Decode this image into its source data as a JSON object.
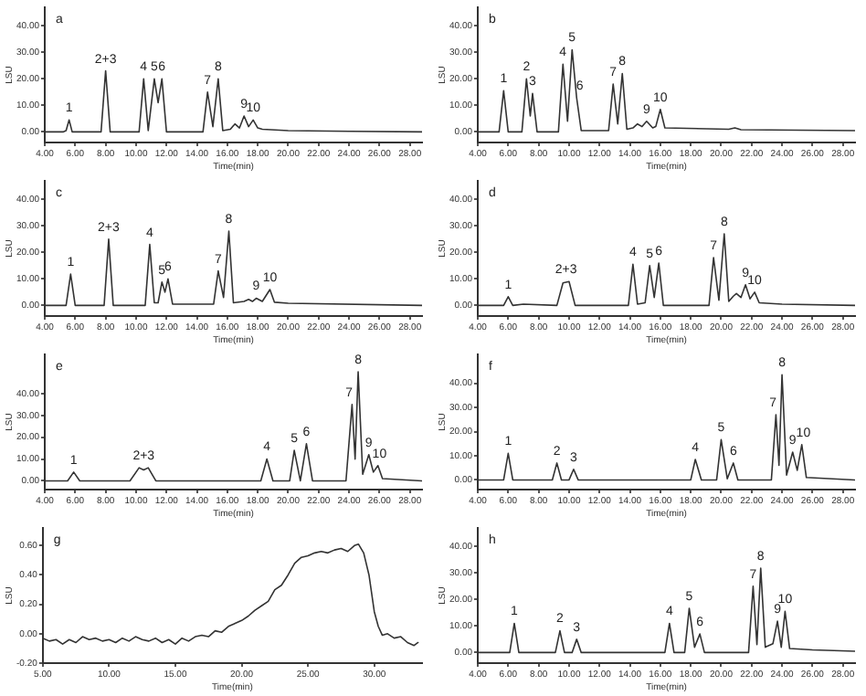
{
  "chart_data": [
    {
      "type": "line",
      "title": "a",
      "xlabel": "Time(min)",
      "ylabel": "LSU",
      "color": "#333333",
      "marker": "none",
      "x": [
        4,
        5.2,
        5.4,
        5.6,
        5.8,
        7.7,
        8.0,
        8.3,
        10.2,
        10.5,
        10.8,
        11.2,
        11.45,
        11.7,
        12.0,
        14.4,
        14.7,
        15.05,
        15.4,
        15.7,
        16.2,
        16.5,
        16.8,
        17.1,
        17.4,
        17.7,
        18.0,
        18.3,
        20,
        24,
        28.8
      ],
      "values": [
        0,
        0,
        0.5,
        4.5,
        0,
        0,
        23,
        0,
        0,
        20,
        0.5,
        20,
        11,
        20,
        0,
        0,
        15,
        2,
        20,
        0.5,
        1,
        3,
        1.5,
        6,
        2,
        4.5,
        1.5,
        1,
        0.5,
        0.2,
        0
      ],
      "xlim": [
        4,
        28.8
      ],
      "xticks": [
        {
          "value": 4,
          "label": "4.00"
        },
        {
          "value": 6,
          "label": "6.00"
        },
        {
          "value": 8,
          "label": "8.00"
        },
        {
          "value": 10,
          "label": "10.00"
        },
        {
          "value": 12,
          "label": "12.00"
        },
        {
          "value": 14,
          "label": "14.00"
        },
        {
          "value": 16,
          "label": "16.00"
        },
        {
          "value": 18,
          "label": "18.00"
        },
        {
          "value": 20,
          "label": "20.00"
        },
        {
          "value": 22,
          "label": "22.00"
        },
        {
          "value": 24,
          "label": "24.00"
        },
        {
          "value": 26,
          "label": "26.00"
        },
        {
          "value": 28,
          "label": "28.00"
        }
      ],
      "ylim": [
        -4,
        47
      ],
      "yticks": [
        {
          "value": 0,
          "label": "0.00"
        },
        {
          "value": 10,
          "label": "10.00"
        },
        {
          "value": 20,
          "label": "20.00"
        },
        {
          "value": 30,
          "label": "30.00"
        },
        {
          "value": 40,
          "label": "40.00"
        }
      ],
      "annotations": [
        {
          "text": "1",
          "x": 5.6,
          "y": 4.5
        },
        {
          "text": "2+3",
          "x": 8.0,
          "y": 23
        },
        {
          "text": "4",
          "x": 10.5,
          "y": 20
        },
        {
          "text": "5",
          "x": 11.2,
          "y": 20
        },
        {
          "text": "6",
          "x": 11.7,
          "y": 20
        },
        {
          "text": "7",
          "x": 14.7,
          "y": 15
        },
        {
          "text": "8",
          "x": 15.4,
          "y": 20
        },
        {
          "text": "9",
          "x": 17.1,
          "y": 6
        },
        {
          "text": "10",
          "x": 17.7,
          "y": 4.5
        }
      ]
    },
    {
      "type": "line",
      "title": "b",
      "xlabel": "Time(min)",
      "ylabel": "LSU",
      "color": "#333333",
      "marker": "none",
      "x": [
        4,
        5.4,
        5.7,
        6.0,
        6.9,
        7.2,
        7.45,
        7.6,
        7.9,
        9.3,
        9.6,
        9.9,
        10.2,
        10.5,
        10.8,
        12.6,
        12.9,
        13.2,
        13.5,
        13.8,
        14.2,
        14.5,
        14.8,
        15.1,
        15.5,
        15.7,
        16.0,
        16.3,
        20.5,
        20.9,
        21.3,
        28.8
      ],
      "values": [
        0,
        0,
        15.5,
        0,
        0,
        20,
        6,
        14.5,
        0,
        0,
        25.5,
        4,
        31,
        12.8,
        0.5,
        0.5,
        18,
        3,
        22,
        1,
        1.5,
        3,
        2,
        4,
        1.5,
        2,
        8.5,
        1.5,
        1,
        1.5,
        0.8,
        0.5
      ],
      "xlim": [
        4,
        28.8
      ],
      "xticks": [
        {
          "value": 4,
          "label": "4.00"
        },
        {
          "value": 6,
          "label": "6.00"
        },
        {
          "value": 8,
          "label": "8.00"
        },
        {
          "value": 10,
          "label": "10.00"
        },
        {
          "value": 12,
          "label": "12.00"
        },
        {
          "value": 14,
          "label": "14.00"
        },
        {
          "value": 16,
          "label": "16.00"
        },
        {
          "value": 18,
          "label": "18.00"
        },
        {
          "value": 20,
          "label": "20.00"
        },
        {
          "value": 22,
          "label": "22.00"
        },
        {
          "value": 24,
          "label": "24.00"
        },
        {
          "value": 26,
          "label": "26.00"
        },
        {
          "value": 28,
          "label": "28.00"
        }
      ],
      "ylim": [
        -4,
        47
      ],
      "yticks": [
        {
          "value": 0,
          "label": "0.00"
        },
        {
          "value": 10,
          "label": "10.00"
        },
        {
          "value": 20,
          "label": "20.00"
        },
        {
          "value": 30,
          "label": "30.00"
        },
        {
          "value": 40,
          "label": "40.00"
        }
      ],
      "annotations": [
        {
          "text": "1",
          "x": 5.7,
          "y": 15.5
        },
        {
          "text": "2",
          "x": 7.2,
          "y": 20
        },
        {
          "text": "3",
          "x": 7.6,
          "y": 14.5
        },
        {
          "text": "4",
          "x": 9.6,
          "y": 25.5
        },
        {
          "text": "5",
          "x": 10.2,
          "y": 31
        },
        {
          "text": "6",
          "x": 10.7,
          "y": 12.8
        },
        {
          "text": "7",
          "x": 12.9,
          "y": 18
        },
        {
          "text": "8",
          "x": 13.5,
          "y": 22
        },
        {
          "text": "9",
          "x": 15.1,
          "y": 4
        },
        {
          "text": "10",
          "x": 16.0,
          "y": 8.5
        }
      ]
    },
    {
      "type": "line",
      "title": "c",
      "xlabel": "Time(min)",
      "ylabel": "LSU",
      "color": "#333333",
      "marker": "none",
      "x": [
        4,
        5.4,
        5.7,
        6.0,
        7.9,
        8.2,
        8.5,
        10.6,
        10.9,
        11.2,
        11.45,
        11.7,
        11.9,
        12.1,
        12.4,
        15.1,
        15.4,
        15.75,
        16.1,
        16.4,
        17.1,
        17.4,
        17.65,
        17.9,
        18.3,
        18.8,
        19.1,
        20,
        28.8
      ],
      "values": [
        0,
        0,
        11.8,
        0,
        0,
        25,
        0,
        0,
        23,
        1,
        1,
        8.8,
        5,
        10,
        0.5,
        0.5,
        13,
        3,
        28,
        1,
        1.5,
        2.3,
        1.5,
        2.7,
        1.5,
        6,
        1.2,
        0.8,
        0
      ],
      "xlim": [
        4,
        28.8
      ],
      "xticks": [
        {
          "value": 4,
          "label": "4.00"
        },
        {
          "value": 6,
          "label": "6.00"
        },
        {
          "value": 8,
          "label": "8.00"
        },
        {
          "value": 10,
          "label": "10.00"
        },
        {
          "value": 12,
          "label": "12.00"
        },
        {
          "value": 14,
          "label": "14.00"
        },
        {
          "value": 16,
          "label": "16.00"
        },
        {
          "value": 18,
          "label": "18.00"
        },
        {
          "value": 20,
          "label": "20.00"
        },
        {
          "value": 22,
          "label": "22.00"
        },
        {
          "value": 24,
          "label": "24.00"
        },
        {
          "value": 26,
          "label": "26.00"
        },
        {
          "value": 28,
          "label": "28.00"
        }
      ],
      "ylim": [
        -4,
        47
      ],
      "yticks": [
        {
          "value": 0,
          "label": "0.00"
        },
        {
          "value": 10,
          "label": "10.00"
        },
        {
          "value": 20,
          "label": "20.00"
        },
        {
          "value": 30,
          "label": "30.00"
        },
        {
          "value": 40,
          "label": "40.00"
        }
      ],
      "annotations": [
        {
          "text": "1",
          "x": 5.7,
          "y": 11.8
        },
        {
          "text": "2+3",
          "x": 8.2,
          "y": 25
        },
        {
          "text": "4",
          "x": 10.9,
          "y": 23
        },
        {
          "text": "5",
          "x": 11.7,
          "y": 8.8
        },
        {
          "text": "6",
          "x": 12.1,
          "y": 10
        },
        {
          "text": "7",
          "x": 15.4,
          "y": 13
        },
        {
          "text": "8",
          "x": 16.1,
          "y": 28
        },
        {
          "text": "9",
          "x": 17.9,
          "y": 2.7
        },
        {
          "text": "10",
          "x": 18.8,
          "y": 6
        }
      ]
    },
    {
      "type": "line",
      "title": "d",
      "xlabel": "Time(min)",
      "ylabel": "LSU",
      "color": "#333333",
      "marker": "none",
      "x": [
        4,
        5.7,
        6.0,
        6.3,
        7,
        9.2,
        9.6,
        10.0,
        10.4,
        13.9,
        14.2,
        14.5,
        15.0,
        15.3,
        15.6,
        15.9,
        16.2,
        19.2,
        19.5,
        19.85,
        20.2,
        20.5,
        20.8,
        21.0,
        21.3,
        21.6,
        21.9,
        22.2,
        22.5,
        24,
        28.8
      ],
      "values": [
        0,
        0,
        3.3,
        0,
        0.5,
        0,
        8.5,
        9,
        0,
        0,
        15.5,
        0.5,
        1,
        15,
        3,
        16,
        0,
        0,
        18,
        2,
        27,
        1.5,
        3.5,
        4.5,
        3,
        7.8,
        2.5,
        5,
        1,
        0.5,
        0
      ],
      "xlim": [
        4,
        28.8
      ],
      "xticks": [
        {
          "value": 4,
          "label": "4.00"
        },
        {
          "value": 6,
          "label": "6.00"
        },
        {
          "value": 8,
          "label": "8.00"
        },
        {
          "value": 10,
          "label": "10.00"
        },
        {
          "value": 12,
          "label": "12.00"
        },
        {
          "value": 14,
          "label": "14.00"
        },
        {
          "value": 16,
          "label": "16.00"
        },
        {
          "value": 18,
          "label": "18.00"
        },
        {
          "value": 20,
          "label": "20.00"
        },
        {
          "value": 22,
          "label": "22.00"
        },
        {
          "value": 24,
          "label": "24.00"
        },
        {
          "value": 26,
          "label": "26.00"
        },
        {
          "value": 28,
          "label": "28.00"
        }
      ],
      "ylim": [
        -4,
        47
      ],
      "yticks": [
        {
          "value": 0,
          "label": "0.00"
        },
        {
          "value": 10,
          "label": "10.00"
        },
        {
          "value": 20,
          "label": "20.00"
        },
        {
          "value": 30,
          "label": "30.00"
        },
        {
          "value": 40,
          "label": "40.00"
        }
      ],
      "annotations": [
        {
          "text": "1",
          "x": 6.0,
          "y": 3.3
        },
        {
          "text": "2+3",
          "x": 9.8,
          "y": 9
        },
        {
          "text": "4",
          "x": 14.2,
          "y": 15.5
        },
        {
          "text": "5",
          "x": 15.3,
          "y": 15
        },
        {
          "text": "6",
          "x": 15.9,
          "y": 16
        },
        {
          "text": "7",
          "x": 19.5,
          "y": 18
        },
        {
          "text": "8",
          "x": 20.2,
          "y": 27
        },
        {
          "text": "9",
          "x": 21.6,
          "y": 7.8
        },
        {
          "text": "10",
          "x": 22.2,
          "y": 5
        }
      ]
    },
    {
      "type": "line",
      "title": "e",
      "xlabel": "Time(min)",
      "ylabel": "LSU",
      "color": "#333333",
      "marker": "none",
      "x": [
        4,
        5.5,
        5.9,
        6.3,
        9.6,
        10.2,
        10.5,
        10.8,
        11.3,
        18.2,
        18.6,
        19.0,
        20.1,
        20.4,
        20.8,
        21.2,
        21.6,
        23.8,
        24.2,
        24.4,
        24.6,
        24.9,
        25.3,
        25.6,
        25.9,
        26.2,
        28.8
      ],
      "values": [
        0,
        0,
        4,
        0,
        0,
        6,
        5,
        6,
        0,
        0,
        10,
        0,
        0,
        14,
        0,
        17,
        0,
        0,
        35,
        10,
        50,
        3,
        12,
        4,
        7,
        1,
        0
      ],
      "xlim": [
        4,
        28.8
      ],
      "xticks": [
        {
          "value": 4,
          "label": "4.00"
        },
        {
          "value": 6,
          "label": "6.00"
        },
        {
          "value": 8,
          "label": "8.00"
        },
        {
          "value": 10,
          "label": "10.00"
        },
        {
          "value": 12,
          "label": "12.00"
        },
        {
          "value": 14,
          "label": "14.00"
        },
        {
          "value": 16,
          "label": "16.00"
        },
        {
          "value": 18,
          "label": "18.00"
        },
        {
          "value": 20,
          "label": "20.00"
        },
        {
          "value": 22,
          "label": "22.00"
        },
        {
          "value": 24,
          "label": "24.00"
        },
        {
          "value": 26,
          "label": "26.00"
        },
        {
          "value": 28,
          "label": "28.00"
        }
      ],
      "ylim": [
        -4,
        58
      ],
      "yticks": [
        {
          "value": 0,
          "label": "0.00"
        },
        {
          "value": 10,
          "label": "10.00"
        },
        {
          "value": 20,
          "label": "20.00"
        },
        {
          "value": 30,
          "label": "30.00"
        },
        {
          "value": 40,
          "label": "40.00"
        }
      ],
      "annotations": [
        {
          "text": "1",
          "x": 5.9,
          "y": 4
        },
        {
          "text": "2+3",
          "x": 10.5,
          "y": 6
        },
        {
          "text": "4",
          "x": 18.6,
          "y": 10
        },
        {
          "text": "5",
          "x": 20.4,
          "y": 14
        },
        {
          "text": "6",
          "x": 21.2,
          "y": 17
        },
        {
          "text": "7",
          "x": 24.0,
          "y": 35
        },
        {
          "text": "8",
          "x": 24.6,
          "y": 50
        },
        {
          "text": "9",
          "x": 25.3,
          "y": 12
        },
        {
          "text": "10",
          "x": 26.0,
          "y": 7
        }
      ]
    },
    {
      "type": "line",
      "title": "f",
      "xlabel": "Time(min)",
      "ylabel": "LSU",
      "color": "#333333",
      "marker": "none",
      "x": [
        4,
        5.7,
        6.0,
        6.3,
        8.9,
        9.2,
        9.5,
        10.0,
        10.3,
        10.6,
        18.0,
        18.3,
        18.7,
        19.7,
        20.0,
        20.4,
        20.8,
        21.1,
        23.3,
        23.6,
        23.8,
        24.0,
        24.3,
        24.7,
        25.0,
        25.3,
        25.6,
        28.8
      ],
      "values": [
        0,
        0,
        11,
        0,
        0,
        7,
        0,
        0,
        4.4,
        0,
        0,
        8.5,
        0,
        0,
        16.7,
        0.5,
        7,
        0,
        0,
        27,
        6,
        43.6,
        2,
        11.5,
        4,
        14.6,
        1,
        0
      ],
      "xlim": [
        4,
        28.8
      ],
      "xticks": [
        {
          "value": 4,
          "label": "4.00"
        },
        {
          "value": 6,
          "label": "6.00"
        },
        {
          "value": 8,
          "label": "8.00"
        },
        {
          "value": 10,
          "label": "10.00"
        },
        {
          "value": 12,
          "label": "12.00"
        },
        {
          "value": 14,
          "label": "14.00"
        },
        {
          "value": 16,
          "label": "16.00"
        },
        {
          "value": 18,
          "label": "18.00"
        },
        {
          "value": 20,
          "label": "20.00"
        },
        {
          "value": 22,
          "label": "22.00"
        },
        {
          "value": 24,
          "label": "24.00"
        },
        {
          "value": 26,
          "label": "26.00"
        },
        {
          "value": 28,
          "label": "28.00"
        }
      ],
      "ylim": [
        -4,
        52
      ],
      "yticks": [
        {
          "value": 0,
          "label": "0.00"
        },
        {
          "value": 10,
          "label": "10.00"
        },
        {
          "value": 20,
          "label": "20.00"
        },
        {
          "value": 30,
          "label": "30.00"
        },
        {
          "value": 40,
          "label": "40.00"
        }
      ],
      "annotations": [
        {
          "text": "1",
          "x": 6.0,
          "y": 11
        },
        {
          "text": "2",
          "x": 9.2,
          "y": 7
        },
        {
          "text": "3",
          "x": 10.3,
          "y": 4.4
        },
        {
          "text": "4",
          "x": 18.3,
          "y": 8.5
        },
        {
          "text": "5",
          "x": 20.0,
          "y": 16.7
        },
        {
          "text": "6",
          "x": 20.8,
          "y": 7
        },
        {
          "text": "7",
          "x": 23.4,
          "y": 27
        },
        {
          "text": "8",
          "x": 24.0,
          "y": 43.6
        },
        {
          "text": "9",
          "x": 24.7,
          "y": 11.5
        },
        {
          "text": "10",
          "x": 25.4,
          "y": 14.6
        }
      ]
    },
    {
      "type": "line",
      "title": "g",
      "xlabel": "Time(min)",
      "ylabel": "LSU",
      "color": "#333333",
      "marker": "none",
      "x": [
        5,
        5.5,
        6,
        6.5,
        7,
        7.5,
        8,
        8.5,
        9,
        9.5,
        10,
        10.5,
        11,
        11.5,
        12,
        12.5,
        13,
        13.5,
        14,
        14.5,
        15,
        15.5,
        16,
        16.5,
        17,
        17.5,
        18,
        18.5,
        19,
        19.5,
        20,
        20.5,
        21,
        21.5,
        22,
        22.5,
        23,
        23.5,
        24,
        24.5,
        25,
        25.5,
        26,
        26.5,
        27,
        27.5,
        28,
        28.5,
        28.8,
        29.2,
        29.6,
        30,
        30.3,
        30.6,
        31,
        31.5,
        32,
        32.5,
        33,
        33.3
      ],
      "values": [
        -0.03,
        -0.05,
        -0.04,
        -0.07,
        -0.04,
        -0.06,
        -0.02,
        -0.04,
        -0.03,
        -0.05,
        -0.04,
        -0.06,
        -0.03,
        -0.05,
        -0.02,
        -0.04,
        -0.05,
        -0.03,
        -0.06,
        -0.04,
        -0.07,
        -0.03,
        -0.05,
        -0.02,
        -0.01,
        -0.02,
        0.02,
        0.01,
        0.05,
        0.07,
        0.09,
        0.12,
        0.16,
        0.19,
        0.22,
        0.3,
        0.33,
        0.4,
        0.48,
        0.52,
        0.53,
        0.55,
        0.56,
        0.55,
        0.57,
        0.58,
        0.56,
        0.6,
        0.61,
        0.55,
        0.4,
        0.15,
        0.05,
        -0.01,
        0.0,
        -0.03,
        -0.02,
        -0.06,
        -0.08,
        -0.06
      ],
      "xlim": [
        5,
        33.6
      ],
      "xticks": [
        {
          "value": 5,
          "label": "5.00"
        },
        {
          "value": 10,
          "label": "10.00"
        },
        {
          "value": 15,
          "label": "15.00"
        },
        {
          "value": 20,
          "label": "20.00"
        },
        {
          "value": 25,
          "label": "25.00"
        },
        {
          "value": 30,
          "label": "30.00"
        }
      ],
      "ylim": [
        -0.2,
        0.72
      ],
      "yticks": [
        {
          "value": -0.2,
          "label": "-0.20"
        },
        {
          "value": 0,
          "label": "0.00"
        },
        {
          "value": 0.2,
          "label": "0.20"
        },
        {
          "value": 0.4,
          "label": "0.40"
        },
        {
          "value": 0.6,
          "label": "0.60"
        }
      ]
    },
    {
      "type": "line",
      "title": "h",
      "xlabel": "Time(min)",
      "ylabel": "LSU",
      "color": "#333333",
      "marker": "none",
      "x": [
        4,
        6.1,
        6.4,
        6.7,
        9.1,
        9.4,
        9.7,
        10.2,
        10.5,
        10.8,
        16.3,
        16.6,
        16.9,
        17.6,
        17.9,
        18.25,
        18.6,
        18.9,
        21.8,
        22.1,
        22.35,
        22.6,
        22.9,
        23.4,
        23.7,
        23.95,
        24.2,
        24.5,
        26,
        28.8
      ],
      "values": [
        0,
        0,
        11,
        0,
        0,
        8.2,
        0,
        0,
        5,
        0,
        0,
        11,
        0,
        0,
        16.7,
        2,
        7,
        0,
        0,
        25,
        3,
        31.8,
        2,
        3.3,
        11.8,
        2,
        15.5,
        1.5,
        1,
        0.5
      ],
      "xlim": [
        4,
        28.8
      ],
      "xticks": [
        {
          "value": 4,
          "label": "4.00"
        },
        {
          "value": 6,
          "label": "6.00"
        },
        {
          "value": 8,
          "label": "8.00"
        },
        {
          "value": 10,
          "label": "10.00"
        },
        {
          "value": 12,
          "label": "12.00"
        },
        {
          "value": 14,
          "label": "14.00"
        },
        {
          "value": 16,
          "label": "16.00"
        },
        {
          "value": 18,
          "label": "18.00"
        },
        {
          "value": 20,
          "label": "20.00"
        },
        {
          "value": 22,
          "label": "22.00"
        },
        {
          "value": 24,
          "label": "24.00"
        },
        {
          "value": 26,
          "label": "26.00"
        },
        {
          "value": 28,
          "label": "28.00"
        }
      ],
      "ylim": [
        -4,
        47
      ],
      "yticks": [
        {
          "value": 0,
          "label": "0.00"
        },
        {
          "value": 10,
          "label": "10.00"
        },
        {
          "value": 20,
          "label": "20.00"
        },
        {
          "value": 30,
          "label": "30.00"
        },
        {
          "value": 40,
          "label": "40.00"
        }
      ],
      "annotations": [
        {
          "text": "1",
          "x": 6.4,
          "y": 11
        },
        {
          "text": "2",
          "x": 9.4,
          "y": 8.2
        },
        {
          "text": "3",
          "x": 10.5,
          "y": 5
        },
        {
          "text": "4",
          "x": 16.6,
          "y": 11
        },
        {
          "text": "5",
          "x": 17.9,
          "y": 16.7
        },
        {
          "text": "6",
          "x": 18.6,
          "y": 7
        },
        {
          "text": "7",
          "x": 22.1,
          "y": 25
        },
        {
          "text": "8",
          "x": 22.6,
          "y": 31.8
        },
        {
          "text": "9",
          "x": 23.7,
          "y": 11.8
        },
        {
          "text": "10",
          "x": 24.2,
          "y": 15.5
        }
      ]
    }
  ]
}
